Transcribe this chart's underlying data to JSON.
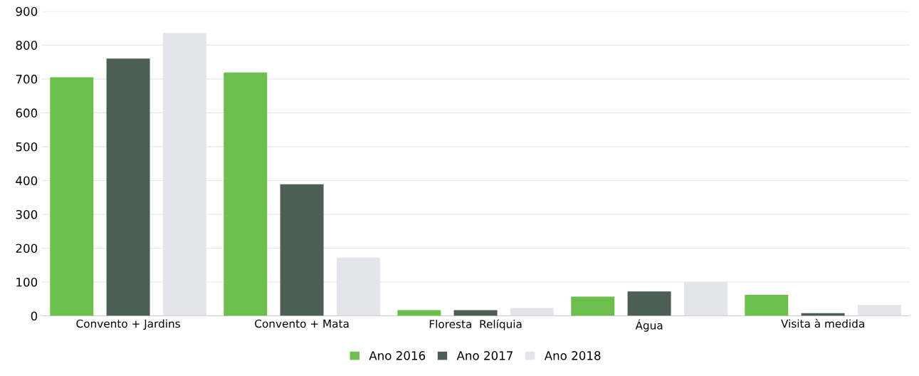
{
  "chart_data": {
    "type": "bar",
    "categories": [
      "Convento + Jardins",
      "Convento + Mata",
      "Floresta  Relíquia",
      "Água",
      "Visita à medida"
    ],
    "series": [
      {
        "name": "Ano 2016",
        "color": "#6cbf4c",
        "values": [
          705,
          719,
          17,
          57,
          62
        ]
      },
      {
        "name": "Ano 2017",
        "color": "#4b5f55",
        "values": [
          760,
          389,
          17,
          72,
          8
        ]
      },
      {
        "name": "Ano 2018",
        "color": "#e4e4ec",
        "values": [
          836,
          172,
          23,
          100,
          32
        ]
      }
    ],
    "ylim": [
      0,
      900
    ],
    "yticks": [
      0,
      100,
      200,
      300,
      400,
      500,
      600,
      700,
      800,
      900
    ],
    "grid": "y",
    "legend": "bottom"
  }
}
